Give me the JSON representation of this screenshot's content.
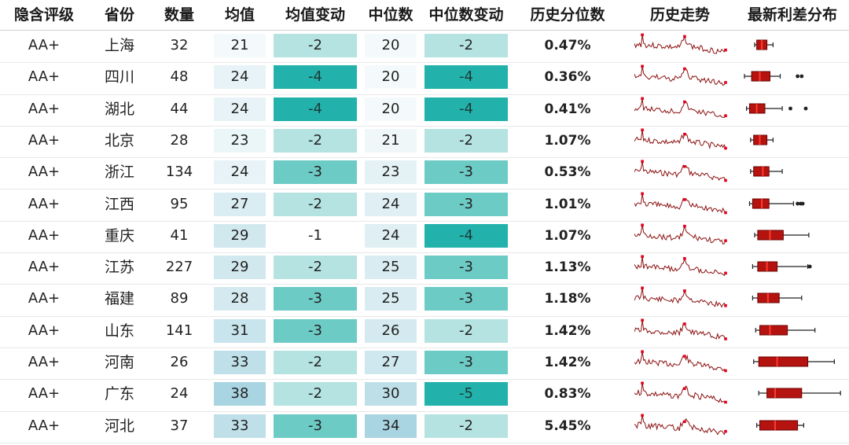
{
  "headers": [
    "隐含评级",
    "省份",
    "数量",
    "均值",
    "均值变动",
    "中位数",
    "中位数变动",
    "历史分位数",
    "历史走势",
    "最新利差分布"
  ],
  "rows": [
    {
      "rating": "AA+",
      "province": "上海",
      "count": "32",
      "mean": "21",
      "mean_chg": "-2",
      "median": "20",
      "median_chg": "-2",
      "pct": "0.47%"
    },
    {
      "rating": "AA+",
      "province": "四川",
      "count": "48",
      "mean": "24",
      "mean_chg": "-4",
      "median": "20",
      "median_chg": "-4",
      "pct": "0.36%"
    },
    {
      "rating": "AA+",
      "province": "湖北",
      "count": "44",
      "mean": "24",
      "mean_chg": "-4",
      "median": "20",
      "median_chg": "-4",
      "pct": "0.41%"
    },
    {
      "rating": "AA+",
      "province": "北京",
      "count": "28",
      "mean": "23",
      "mean_chg": "-2",
      "median": "21",
      "median_chg": "-2",
      "pct": "1.07%"
    },
    {
      "rating": "AA+",
      "province": "浙江",
      "count": "134",
      "mean": "24",
      "mean_chg": "-3",
      "median": "23",
      "median_chg": "-3",
      "pct": "0.53%"
    },
    {
      "rating": "AA+",
      "province": "江西",
      "count": "95",
      "mean": "27",
      "mean_chg": "-2",
      "median": "24",
      "median_chg": "-3",
      "pct": "1.01%"
    },
    {
      "rating": "AA+",
      "province": "重庆",
      "count": "41",
      "mean": "29",
      "mean_chg": "-1",
      "median": "24",
      "median_chg": "-4",
      "pct": "1.07%"
    },
    {
      "rating": "AA+",
      "province": "江苏",
      "count": "227",
      "mean": "29",
      "mean_chg": "-2",
      "median": "25",
      "median_chg": "-3",
      "pct": "1.13%"
    },
    {
      "rating": "AA+",
      "province": "福建",
      "count": "89",
      "mean": "28",
      "mean_chg": "-3",
      "median": "25",
      "median_chg": "-3",
      "pct": "1.18%"
    },
    {
      "rating": "AA+",
      "province": "山东",
      "count": "141",
      "mean": "31",
      "mean_chg": "-3",
      "median": "26",
      "median_chg": "-2",
      "pct": "1.42%"
    },
    {
      "rating": "AA+",
      "province": "河南",
      "count": "26",
      "mean": "33",
      "mean_chg": "-2",
      "median": "27",
      "median_chg": "-3",
      "pct": "1.42%"
    },
    {
      "rating": "AA+",
      "province": "广东",
      "count": "24",
      "mean": "38",
      "mean_chg": "-2",
      "median": "30",
      "median_chg": "-5",
      "pct": "0.83%"
    },
    {
      "rating": "AA+",
      "province": "河北",
      "count": "37",
      "mean": "33",
      "mean_chg": "-3",
      "median": "34",
      "median_chg": "-2",
      "pct": "5.45%"
    }
  ],
  "chart_data": {
    "type": "table",
    "columns": [
      "隐含评级",
      "省份",
      "数量",
      "均值",
      "均值变动",
      "中位数",
      "中位数变动",
      "历史分位数",
      "历史走势",
      "最新利差分布"
    ],
    "mean_colors": {
      "low": "#f4fafb",
      "high": "#a9d4e1",
      "range": [
        21,
        38
      ]
    },
    "median_colors": {
      "low": "#f4fafb",
      "high": "#a9d4e1",
      "range": [
        20,
        34
      ]
    },
    "change_colors": {
      "-1": "#ffffff",
      "-2": "#b4e3e1",
      "-3": "#6dcbc6",
      "-4": "#22b2ab",
      "-5": "#22b2ab"
    },
    "sparkline_color": "#8b1010",
    "boxplots": [
      {
        "whisker_lo": 0.1,
        "q1": 0.12,
        "median": 0.17,
        "q3": 0.22,
        "whisker_hi": 0.28,
        "outliers": []
      },
      {
        "whisker_lo": 0.0,
        "q1": 0.07,
        "median": 0.15,
        "q3": 0.25,
        "whisker_hi": 0.35,
        "outliers": [
          0.52,
          0.56
        ]
      },
      {
        "whisker_lo": 0.02,
        "q1": 0.05,
        "median": 0.12,
        "q3": 0.2,
        "whisker_hi": 0.37,
        "outliers": [
          0.45,
          0.6
        ]
      },
      {
        "whisker_lo": 0.06,
        "q1": 0.09,
        "median": 0.15,
        "q3": 0.22,
        "whisker_hi": 0.28,
        "outliers": []
      },
      {
        "whisker_lo": 0.06,
        "q1": 0.09,
        "median": 0.18,
        "q3": 0.24,
        "whisker_hi": 0.37,
        "outliers": []
      },
      {
        "whisker_lo": 0.05,
        "q1": 0.08,
        "median": 0.17,
        "q3": 0.24,
        "whisker_hi": 0.48,
        "outliers": [
          0.52,
          0.55,
          0.57
        ]
      },
      {
        "whisker_lo": 0.1,
        "q1": 0.13,
        "median": 0.25,
        "q3": 0.38,
        "whisker_hi": 0.63,
        "outliers": []
      },
      {
        "whisker_lo": 0.08,
        "q1": 0.13,
        "median": 0.22,
        "q3": 0.32,
        "whisker_hi": 0.62,
        "outliers": [
          0.64
        ]
      },
      {
        "whisker_lo": 0.08,
        "q1": 0.13,
        "median": 0.23,
        "q3": 0.34,
        "whisker_hi": 0.56,
        "outliers": []
      },
      {
        "whisker_lo": 0.11,
        "q1": 0.15,
        "median": 0.25,
        "q3": 0.42,
        "whisker_hi": 0.69,
        "outliers": []
      },
      {
        "whisker_lo": 0.09,
        "q1": 0.14,
        "median": 0.32,
        "q3": 0.62,
        "whisker_hi": 0.88,
        "outliers": []
      },
      {
        "whisker_lo": 0.14,
        "q1": 0.22,
        "median": 0.3,
        "q3": 0.56,
        "whisker_hi": 0.94,
        "outliers": []
      },
      {
        "whisker_lo": 0.12,
        "q1": 0.15,
        "median": 0.3,
        "q3": 0.52,
        "whisker_hi": 0.58,
        "outliers": []
      }
    ]
  }
}
